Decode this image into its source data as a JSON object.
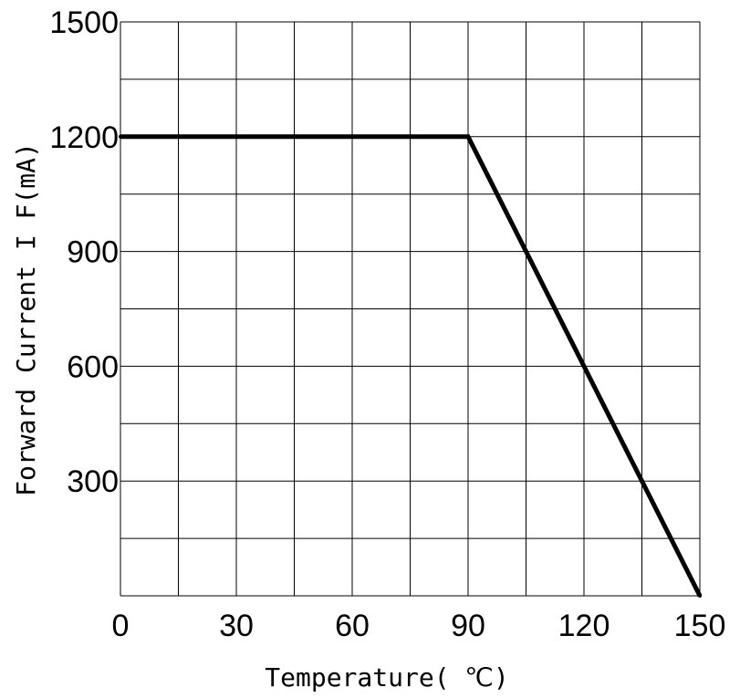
{
  "chart_data": {
    "type": "line",
    "title": "",
    "xlabel": "Temperature( ℃)",
    "ylabel": "Forward Current I F(mA)",
    "xlim": [
      0,
      150
    ],
    "ylim": [
      0,
      1500
    ],
    "x_ticks": [
      0,
      30,
      60,
      90,
      120,
      150
    ],
    "x_tick_labels": [
      "0",
      "30",
      "60",
      "90",
      "120",
      "150"
    ],
    "x_grid_step": 15,
    "y_ticks": [
      300,
      600,
      900,
      1200,
      1500
    ],
    "y_tick_labels": [
      "300",
      "600",
      "900",
      "1200",
      "1500"
    ],
    "y_grid_step": 150,
    "grid": true,
    "legend": "none",
    "series": [
      {
        "x": [
          0,
          90,
          150
        ],
        "y": [
          1200,
          1200,
          0
        ],
        "color": "#000000"
      }
    ]
  }
}
